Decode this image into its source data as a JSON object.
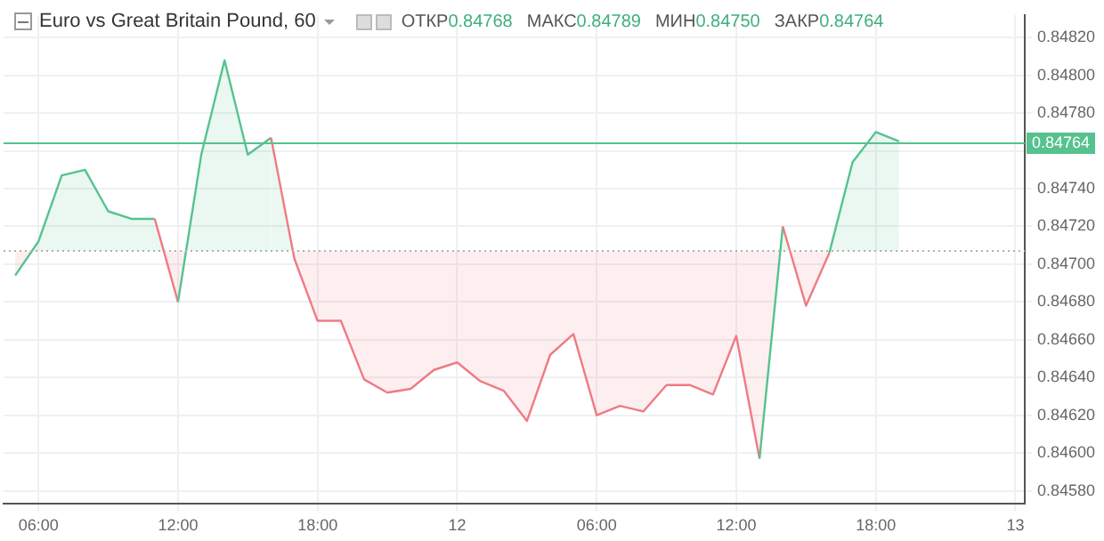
{
  "chart_data": {
    "type": "area",
    "title": "Euro vs Great Britain Pound, 60",
    "annotations": [
      "ОТКР0.84768",
      "МАКС0.84789",
      "МИН0.84750",
      "ЗАКР0.84764"
    ],
    "x": [
      "--01-11T05:00",
      "--01-11T06:00",
      "--01-11T07:00",
      "--01-11T08:00",
      "--01-11T09:00",
      "--01-11T10:00",
      "--01-11T11:00",
      "--01-11T12:00",
      "--01-11T13:00",
      "--01-11T14:00",
      "--01-11T15:00",
      "--01-11T16:00",
      "--01-11T17:00",
      "--01-11T18:00",
      "--01-11T19:00",
      "--01-11T20:00",
      "--01-11T21:00",
      "--01-11T22:00",
      "--01-11T23:00",
      "--01-12T00:00",
      "--01-12T01:00",
      "--01-12T02:00",
      "--01-12T03:00",
      "--01-12T04:00",
      "--01-12T05:00",
      "--01-12T06:00",
      "--01-12T07:00",
      "--01-12T08:00",
      "--01-12T09:00",
      "--01-12T10:00",
      "--01-12T11:00",
      "--01-12T12:00",
      "--01-12T13:00",
      "--01-12T14:00",
      "--01-12T15:00",
      "--01-12T16:00",
      "--01-12T17:00",
      "--01-12T18:00",
      "--01-12T19:00"
    ],
    "series": [
      {
        "values": [
          0.84694,
          0.84712,
          0.84747,
          0.8475,
          0.84728,
          0.84724,
          0.84724,
          0.8468,
          0.84758,
          0.84808,
          0.84758,
          0.84767,
          0.84703,
          0.8467,
          0.8467,
          0.84639,
          0.84632,
          0.84634,
          0.84644,
          0.84648,
          0.84638,
          0.84633,
          0.84617,
          0.84652,
          0.84663,
          0.8462,
          0.84625,
          0.84622,
          0.84636,
          0.84636,
          0.84631,
          0.84662,
          0.84597,
          0.8472,
          0.84678,
          0.84706,
          0.84754,
          0.8477,
          0.84765
        ],
        "colors": [
          "#f07a84",
          "#56c28f",
          "#56c28f",
          "#56c28f",
          "#56c28f",
          "#56c28f",
          "#56c28f",
          "#f07a84",
          "#56c28f",
          "#56c28f",
          "#56c28f",
          "#56c28f",
          "#f07a84",
          "#f07a84",
          "#f07a84",
          "#f07a84",
          "#f07a84",
          "#f07a84",
          "#f07a84",
          "#f07a84",
          "#f07a84",
          "#f07a84",
          "#f07a84",
          "#f07a84",
          "#f07a84",
          "#f07a84",
          "#f07a84",
          "#f07a84",
          "#f07a84",
          "#f07a84",
          "#f07a84",
          "#f07a84",
          "#f07a84",
          "#56c28f",
          "#f07a84",
          "#f07a84",
          "#56c28f",
          "#56c28f",
          "#56c28f"
        ]
      }
    ],
    "xlim": [
      "--01-11T04:30",
      "--01-13T00:24"
    ],
    "xticks": [
      {
        "value": "--01-11T06:00",
        "label": "06:00"
      },
      {
        "value": "--01-11T12:00",
        "label": "12:00"
      },
      {
        "value": "--01-11T18:00",
        "label": "18:00"
      },
      {
        "value": "--01-12T00:00",
        "label": "12"
      },
      {
        "value": "--01-12T06:00",
        "label": "06:00"
      },
      {
        "value": "--01-12T12:00",
        "label": "12:00"
      },
      {
        "value": "--01-12T18:00",
        "label": "18:00"
      },
      {
        "value": "--01-13T00:00",
        "label": "13"
      }
    ],
    "ylim": [
      0.84573,
      0.84832
    ],
    "yticks": [
      {
        "value": 0.8458,
        "label": "0.84580"
      },
      {
        "value": 0.846,
        "label": "0.84600"
      },
      {
        "value": 0.8462,
        "label": "0.84620"
      },
      {
        "value": 0.8464,
        "label": "0.84640"
      },
      {
        "value": 0.8466,
        "label": "0.84660"
      },
      {
        "value": 0.8468,
        "label": "0.84680"
      },
      {
        "value": 0.847,
        "label": "0.84700"
      },
      {
        "value": 0.8472,
        "label": "0.84720"
      },
      {
        "value": 0.8474,
        "label": "0.84740"
      },
      {
        "value": 0.8476,
        "label": null
      },
      {
        "value": 0.8478,
        "label": "0.84780"
      },
      {
        "value": 0.848,
        "label": "0.84800"
      },
      {
        "value": 0.8482,
        "label": "0.84820"
      }
    ],
    "ref_lines": [
      {
        "axis": "y",
        "value": 0.84707,
        "color": "#b0b0b0",
        "line_style": "dotted"
      },
      {
        "axis": "y",
        "value": 0.84764,
        "label": "0.84764",
        "color": "#56c28f",
        "line_style": "solid"
      }
    ],
    "grid": true,
    "legend": false,
    "marker": "none",
    "line_style": "solid"
  }
}
